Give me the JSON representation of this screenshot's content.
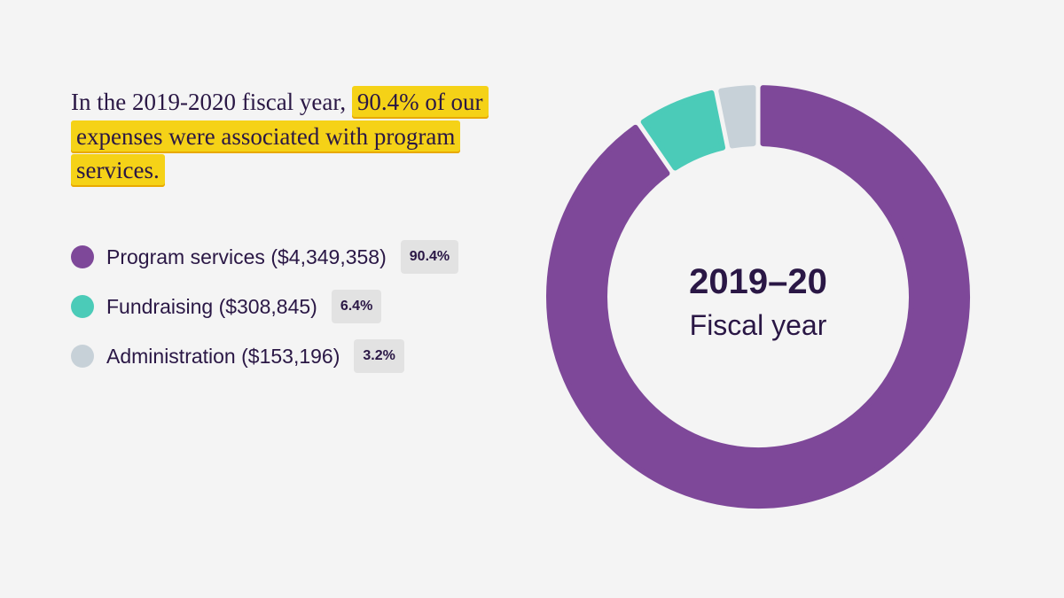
{
  "headline": {
    "pre": "In the 2019-2020 fiscal year, ",
    "highlight": "90.4% of our expenses were associated with program services."
  },
  "colors": {
    "program": "#7e4899",
    "fundraising": "#4bcbb8",
    "administration": "#c7d1d8",
    "highlight": "#f5d217",
    "text": "#2a1745"
  },
  "chart_data": {
    "type": "pie",
    "variant": "donut",
    "center_title": "2019–20",
    "center_subtitle": "Fiscal year",
    "slices": [
      {
        "label": "Program services ($4,349,358)",
        "name": "Program services",
        "amount": 4349358,
        "value": 90.4,
        "percent_label": "90.4%",
        "color": "#7e4899"
      },
      {
        "label": "Fundraising ($308,845)",
        "name": "Fundraising",
        "amount": 308845,
        "value": 6.4,
        "percent_label": "6.4%",
        "color": "#4bcbb8"
      },
      {
        "label": "Administration ($153,196)",
        "name": "Administration",
        "amount": 153196,
        "value": 3.2,
        "percent_label": "3.2%",
        "color": "#c7d1d8"
      }
    ],
    "legend_position": "left"
  }
}
